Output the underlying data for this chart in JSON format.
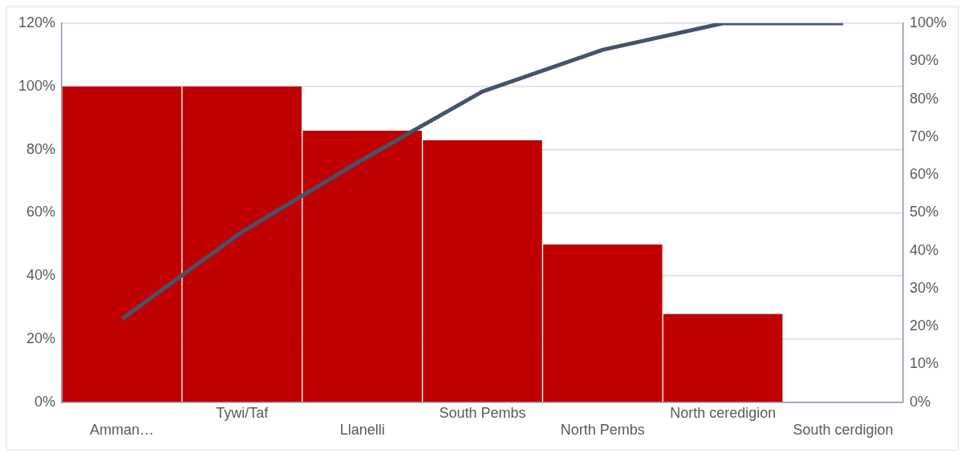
{
  "chart_data": {
    "type": "bar",
    "categories": [
      "Amman…",
      "Tywi/Taf",
      "Llanelli",
      "South Pembs",
      "North Pembs",
      "North ceredigion",
      "South cerdigion"
    ],
    "series": [
      {
        "color": "#c00000",
        "values": [
          100,
          100,
          86,
          83,
          50,
          28,
          0
        ]
      },
      {
        "type": "line",
        "axis": "y2",
        "color": "#44546a",
        "values": [
          22,
          45,
          64,
          82,
          93,
          100,
          100
        ]
      }
    ],
    "ylim": [
      0,
      120
    ],
    "yticks": [
      {
        "value": 0,
        "label": "0%"
      },
      {
        "value": 20,
        "label": "20%"
      },
      {
        "value": 40,
        "label": "40%"
      },
      {
        "value": 60,
        "label": "60%"
      },
      {
        "value": 80,
        "label": "80%"
      },
      {
        "value": 100,
        "label": "100%"
      },
      {
        "value": 120,
        "label": "120%"
      }
    ],
    "y2lim": [
      0,
      100
    ],
    "y2ticks": [
      {
        "value": 0,
        "label": "0%"
      },
      {
        "value": 10,
        "label": "10%"
      },
      {
        "value": 20,
        "label": "20%"
      },
      {
        "value": 30,
        "label": "30%"
      },
      {
        "value": 40,
        "label": "40%"
      },
      {
        "value": 50,
        "label": "50%"
      },
      {
        "value": 60,
        "label": "60%"
      },
      {
        "value": 70,
        "label": "70%"
      },
      {
        "value": 80,
        "label": "80%"
      },
      {
        "value": 90,
        "label": "90%"
      },
      {
        "value": 100,
        "label": "100%"
      }
    ],
    "grid": "y",
    "marker": "none"
  }
}
